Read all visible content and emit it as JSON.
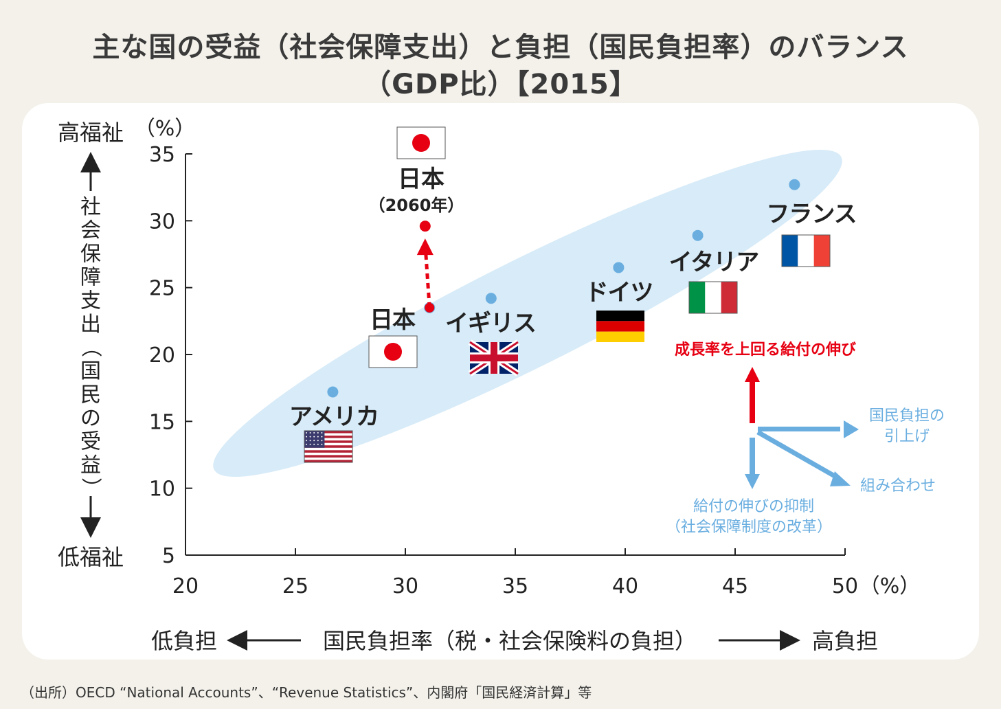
{
  "title": {
    "line1": "主な国の受益（社会保障支出）と負担（国民負担率）のバランス",
    "line2": "（GDP比）【2015】"
  },
  "source": "（出所）OECD “National Accounts”、“Revenue Statistics”、内閣府「国民経済計算」等",
  "colors": {
    "point": "#6aaee0",
    "ellipse": "#d7ebf8",
    "japan_2060": "#e60012",
    "arrow_blue": "#6aaee0",
    "arrow_red": "#e60012"
  },
  "chart_data": {
    "type": "scatter",
    "xlabel": "国民負担率（税・社会保険料の負担）",
    "xlabel_left": "低負担",
    "xlabel_right": "高負担",
    "x_unit": "（%）",
    "ylabel": "社会保障支出（国民の受益）",
    "ylabel_top": "高福祉",
    "ylabel_bottom": "低福祉",
    "y_unit": "（%）",
    "xlim": [
      20,
      50
    ],
    "ylim": [
      5,
      35
    ],
    "x_ticks": [
      "20",
      "25",
      "30",
      "35",
      "40",
      "45",
      "50"
    ],
    "y_ticks": [
      "5",
      "10",
      "15",
      "20",
      "25",
      "30",
      "35"
    ],
    "grid": false,
    "points": [
      {
        "label": "アメリカ",
        "flag": "usa",
        "x": 26.7,
        "y": 17.2
      },
      {
        "label": "日本",
        "flag": "japan",
        "x": 31.1,
        "y": 23.5
      },
      {
        "label": "イギリス",
        "flag": "uk",
        "x": 33.9,
        "y": 24.2
      },
      {
        "label": "ドイツ",
        "flag": "germany",
        "x": 39.7,
        "y": 26.5
      },
      {
        "label": "イタリア",
        "flag": "italy",
        "x": 43.3,
        "y": 28.9
      },
      {
        "label": "フランス",
        "flag": "france",
        "x": 47.7,
        "y": 32.7
      }
    ],
    "projection": {
      "label": "日本",
      "sublabel": "（2060年）",
      "from": {
        "x": 31.1,
        "y": 23.5
      },
      "to": {
        "x": 30.9,
        "y": 29.6
      }
    },
    "legend_diagram": {
      "up": "成長率を上回る給付の伸び",
      "right": [
        "国民負担の",
        "引上げ"
      ],
      "diagonal": "組み合わせ",
      "down": [
        "給付の伸びの抑制",
        "（社会保障制度の改革）"
      ]
    }
  }
}
